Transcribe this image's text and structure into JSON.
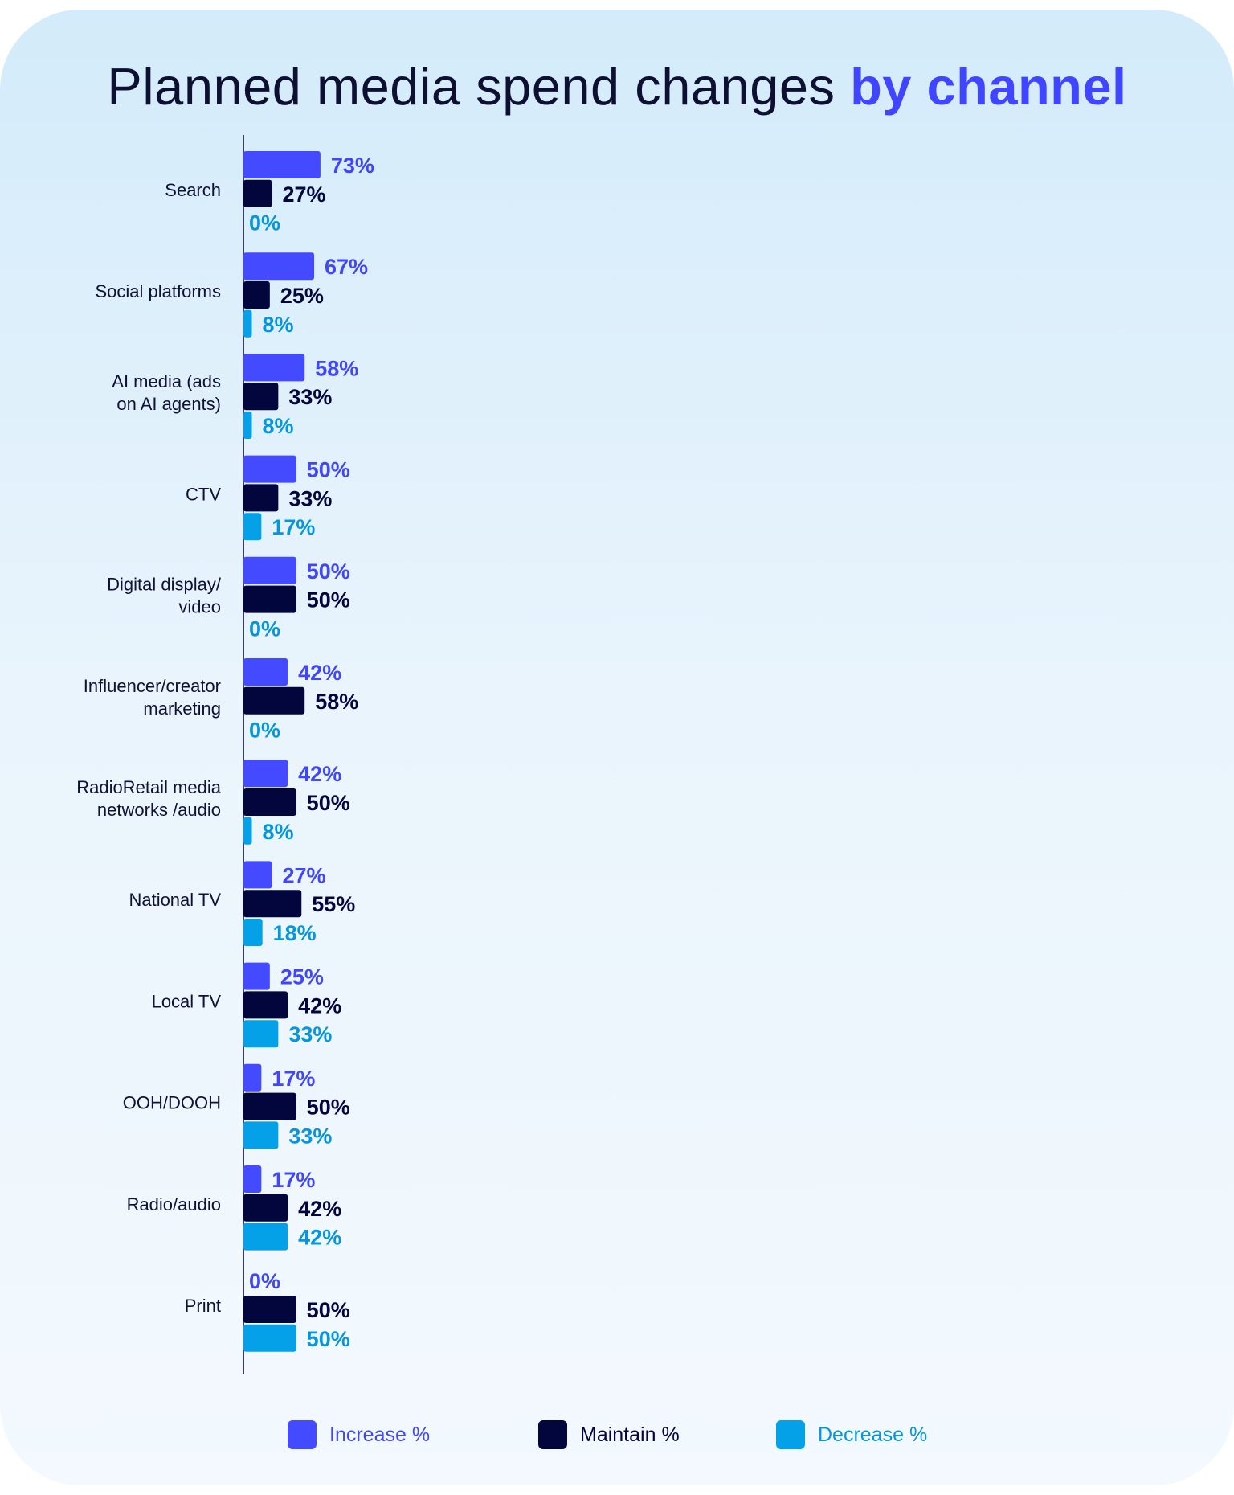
{
  "title": {
    "main": "Planned media spend changes",
    "accent": "by channel"
  },
  "colors": {
    "increase": "#434aff",
    "maintain": "#03063d",
    "decrease": "#04a0e8",
    "title_accent": "#4046ff",
    "text": "#101235"
  },
  "chart_data": {
    "type": "bar",
    "orientation": "horizontal",
    "categories": [
      "Search",
      "Social platforms",
      "AI media (ads on AI agents)",
      "CTV",
      "Digital display/ video",
      "Influencer/creator marketing",
      "RadioRetail media networks /audio",
      "National TV",
      "Local TV",
      "OOH/DOOH",
      "Radio/audio",
      "Print"
    ],
    "category_lines": [
      [
        "Search"
      ],
      [
        "Social platforms"
      ],
      [
        "AI media (ads",
        "on AI agents)"
      ],
      [
        "CTV"
      ],
      [
        "Digital display/",
        "video"
      ],
      [
        "Influencer/creator",
        "marketing"
      ],
      [
        "RadioRetail media",
        "networks /audio"
      ],
      [
        "National TV"
      ],
      [
        "Local TV"
      ],
      [
        "OOH/DOOH"
      ],
      [
        "Radio/audio"
      ],
      [
        "Print"
      ]
    ],
    "series": [
      {
        "name": "Increase %",
        "color": "#434aff",
        "label_color": "#4147f5",
        "values": [
          73,
          67,
          58,
          50,
          50,
          42,
          42,
          27,
          25,
          17,
          17,
          0
        ]
      },
      {
        "name": "Maintain %",
        "color": "#03063d",
        "label_color": "#03063d",
        "values": [
          27,
          25,
          33,
          33,
          50,
          58,
          50,
          55,
          42,
          50,
          42,
          50
        ]
      },
      {
        "name": "Decrease %",
        "color": "#04a0e8",
        "label_color": "#0796dc",
        "values": [
          0,
          8,
          8,
          17,
          0,
          0,
          8,
          18,
          33,
          33,
          42,
          50
        ]
      }
    ],
    "value_suffix": "%",
    "xlim": [
      0,
      100
    ],
    "grid": false,
    "legend_position": "bottom"
  }
}
